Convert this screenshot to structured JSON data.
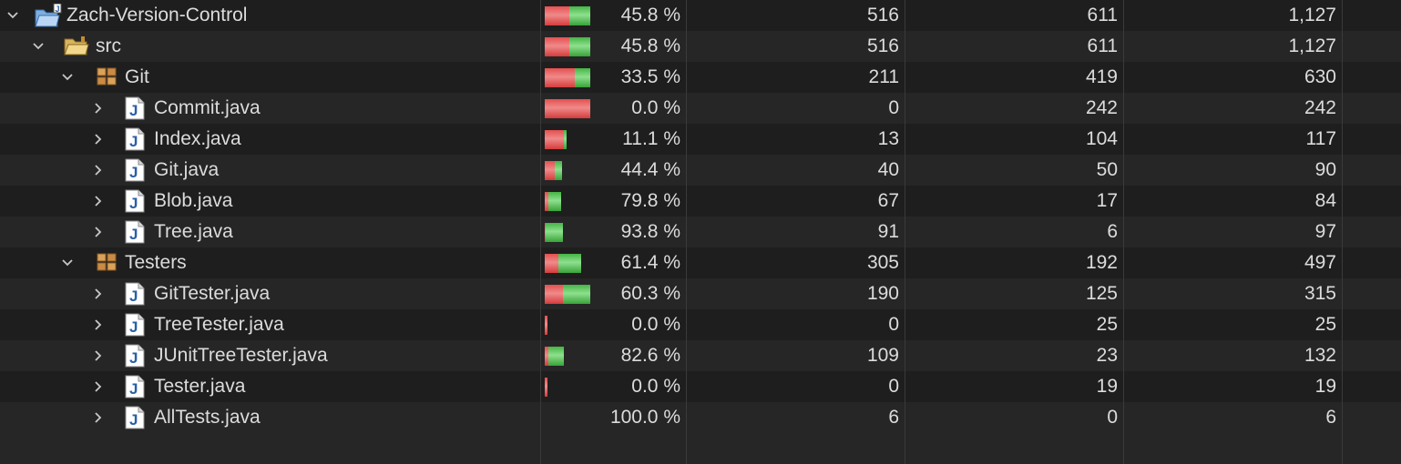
{
  "colors": {
    "missed": "#e45050",
    "covered": "#45b545",
    "background": "#1e1e1e"
  },
  "rows": [
    {
      "name": "Zach-Version-Control",
      "type": "project",
      "level": 0,
      "pct": "45.8 %",
      "covered": "516",
      "missed": "611",
      "total": "1,127",
      "ratio": 0.458,
      "scale": 1.0
    },
    {
      "name": "src",
      "type": "folder",
      "level": 1,
      "pct": "45.8 %",
      "covered": "516",
      "missed": "611",
      "total": "1,127",
      "ratio": 0.458,
      "scale": 1.0
    },
    {
      "name": "Git",
      "type": "package",
      "level": 2,
      "pct": "33.5 %",
      "covered": "211",
      "missed": "419",
      "total": "630",
      "ratio": 0.335,
      "scale": 1.0
    },
    {
      "name": "Commit.java",
      "type": "java",
      "level": 3,
      "pct": "0.0 %",
      "covered": "0",
      "missed": "242",
      "total": "242",
      "ratio": 0.0,
      "scale": 1.0
    },
    {
      "name": "Index.java",
      "type": "java",
      "level": 3,
      "pct": "11.1 %",
      "covered": "13",
      "missed": "104",
      "total": "117",
      "ratio": 0.111,
      "scale": 0.48
    },
    {
      "name": "Git.java",
      "type": "java",
      "level": 3,
      "pct": "44.4 %",
      "covered": "40",
      "missed": "50",
      "total": "90",
      "ratio": 0.444,
      "scale": 0.37
    },
    {
      "name": "Blob.java",
      "type": "java",
      "level": 3,
      "pct": "79.8 %",
      "covered": "67",
      "missed": "17",
      "total": "84",
      "ratio": 0.798,
      "scale": 0.35
    },
    {
      "name": "Tree.java",
      "type": "java",
      "level": 3,
      "pct": "93.8 %",
      "covered": "91",
      "missed": "6",
      "total": "97",
      "ratio": 0.938,
      "scale": 0.4
    },
    {
      "name": "Testers",
      "type": "package",
      "level": 2,
      "pct": "61.4 %",
      "covered": "305",
      "missed": "192",
      "total": "497",
      "ratio": 0.614,
      "scale": 0.79
    },
    {
      "name": "GitTester.java",
      "type": "java",
      "level": 3,
      "pct": "60.3 %",
      "covered": "190",
      "missed": "125",
      "total": "315",
      "ratio": 0.603,
      "scale": 1.0
    },
    {
      "name": "TreeTester.java",
      "type": "java",
      "level": 3,
      "pct": "0.0 %",
      "covered": "0",
      "missed": "25",
      "total": "25",
      "ratio": 0.0,
      "scale": 0.06
    },
    {
      "name": "JUnitTreeTester.java",
      "type": "java",
      "level": 3,
      "pct": "82.6 %",
      "covered": "109",
      "missed": "23",
      "total": "132",
      "ratio": 0.826,
      "scale": 0.42
    },
    {
      "name": "Tester.java",
      "type": "java",
      "level": 3,
      "pct": "0.0 %",
      "covered": "0",
      "missed": "19",
      "total": "19",
      "ratio": 0.0,
      "scale": 0.06
    },
    {
      "name": "AllTests.java",
      "type": "java",
      "level": 3,
      "pct": "100.0 %",
      "covered": "6",
      "missed": "0",
      "total": "6",
      "ratio": 1.0,
      "scale": 0.0
    }
  ]
}
